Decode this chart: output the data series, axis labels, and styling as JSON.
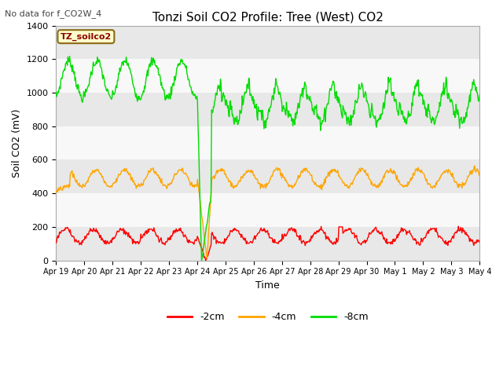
{
  "title": "Tonzi Soil CO2 Profile: Tree (West) CO2",
  "suptitle": "No data for f_CO2W_4",
  "ylabel": "Soil CO2 (mV)",
  "xlabel": "Time",
  "ylim": [
    0,
    1400
  ],
  "legend_label": "TZ_soilco2",
  "series_labels": [
    "-2cm",
    "-4cm",
    "-8cm"
  ],
  "series_colors": [
    "#ff0000",
    "#ffa500",
    "#00dd00"
  ],
  "fig_facecolor": "#ffffff",
  "plot_facecolor": "#ffffff",
  "tick_labels": [
    "Apr 19",
    "Apr 20",
    "Apr 21",
    "Apr 22",
    "Apr 23",
    "Apr 24",
    "Apr 25",
    "Apr 26",
    "Apr 27",
    "Apr 28",
    "Apr 29",
    "Apr 30",
    "May 1",
    "May 2",
    "May 3",
    "May 4"
  ],
  "yticks": [
    0,
    200,
    400,
    600,
    800,
    1000,
    1200,
    1400
  ],
  "band_colors": [
    "#e8e8e8",
    "#f8f8f8"
  ],
  "drop_day": 5.0,
  "recover_day": 5.5,
  "green_base_early": 1080,
  "green_amp_early": 110,
  "green_base_late": 950,
  "green_amp_late": 120,
  "orange_base": 490,
  "orange_amp": 50,
  "red_base": 145,
  "red_amp": 40,
  "n_days": 15
}
